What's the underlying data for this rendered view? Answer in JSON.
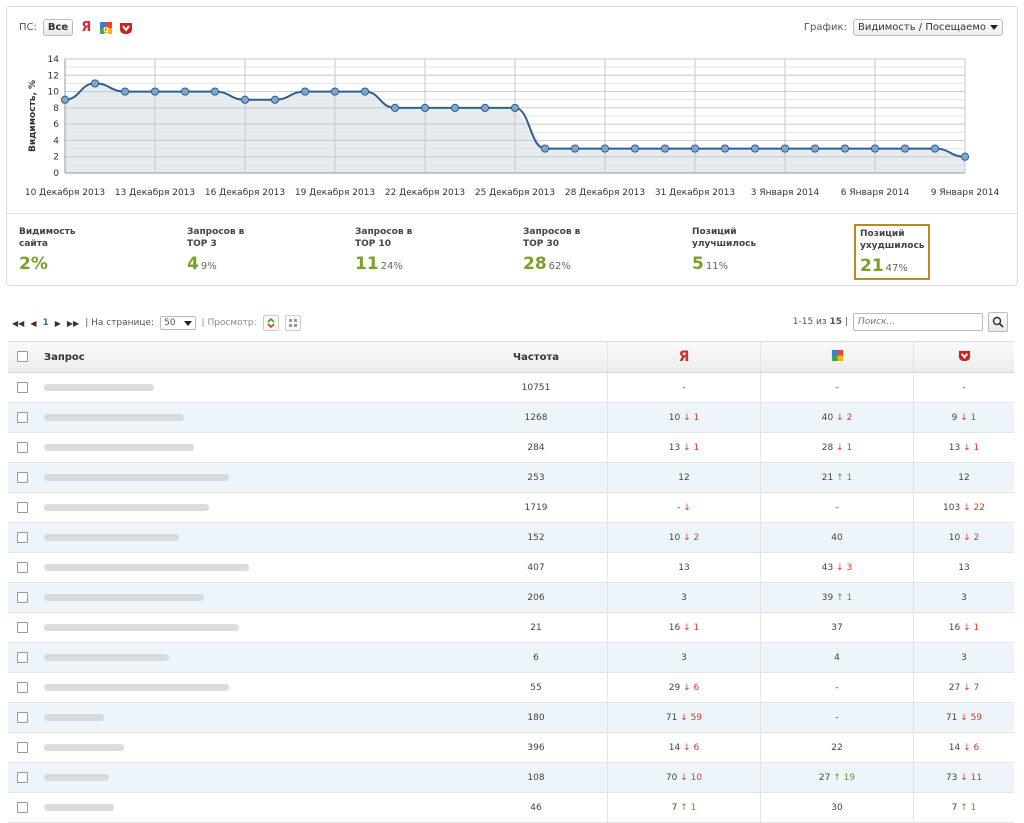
{
  "ps_filter": {
    "label": "ПС:",
    "all": "Все"
  },
  "graph_selector": {
    "label": "График:",
    "value": "Видимость / Посещаемо"
  },
  "chart_data": {
    "type": "area",
    "ylabel": "Видимость, %",
    "ylim": [
      0,
      14
    ],
    "yticks": [
      0,
      2,
      4,
      6,
      8,
      10,
      12,
      14
    ],
    "xtick_labels": [
      "10 Декабря 2013",
      "13 Декабря 2013",
      "16 Декабря 2013",
      "19 Декабря 2013",
      "22 Декабря 2013",
      "25 Декабря 2013",
      "28 Декабря 2013",
      "31 Декабря 2013",
      "3 Января 2014",
      "6 Января 2014",
      "9 Января 2014"
    ],
    "values": [
      9,
      11,
      10,
      10,
      10,
      10,
      9,
      9,
      10,
      10,
      10,
      8,
      8,
      8,
      8,
      8,
      3,
      3,
      3,
      3,
      3,
      3,
      3,
      3,
      3,
      3,
      3,
      3,
      3,
      3,
      2
    ],
    "grid": true,
    "line_color": "#2f5f8f",
    "fill_color": "#e6ebf0"
  },
  "metrics": [
    {
      "title": "Видимость\nсайта",
      "value": "2%",
      "pct": ""
    },
    {
      "title": "Запросов в\nТОР 3",
      "value": "4",
      "pct": "9%"
    },
    {
      "title": "Запросов в\nТОР 10",
      "value": "11",
      "pct": "24%"
    },
    {
      "title": "Запросов в\nТОР 30",
      "value": "28",
      "pct": "62%"
    },
    {
      "title": "Позиций\nулучшилось",
      "value": "5",
      "pct": "11%"
    },
    {
      "title": "Позиций\nухудшилось",
      "value": "21",
      "pct": "47%"
    }
  ],
  "toolbar": {
    "first": "◀◀",
    "prev": "◀",
    "page": "1",
    "next": "▶",
    "last": "▶▶",
    "per_page_label": "| На странице:",
    "per_page": "50",
    "view_label": "| Просмотр:",
    "range_prefix": "1-15 из",
    "total": "15",
    "range_suffix": "|",
    "search_placeholder": "Поиск..."
  },
  "table": {
    "headers": {
      "query": "Запрос",
      "freq": "Частота",
      "yandex": "Я"
    },
    "rows": [
      {
        "w": 110,
        "freq": "10751",
        "y": "-",
        "yd": "",
        "yc": "",
        "g": "-",
        "gd": "",
        "gc": "",
        "m": "-",
        "md": "",
        "mc": ""
      },
      {
        "w": 140,
        "freq": "1268",
        "y": "10",
        "yd": "↓ 1",
        "yc": "down",
        "g": "40",
        "gd": "↓ 2",
        "gc": "down",
        "m": "9",
        "md": "↓ 1",
        "mc": "down"
      },
      {
        "w": 150,
        "freq": "284",
        "y": "13",
        "yd": "↓ 1",
        "yc": "down",
        "g": "28",
        "gd": "↓ 1",
        "gc": "down",
        "m": "13",
        "md": "↓ 1",
        "mc": "down"
      },
      {
        "w": 185,
        "freq": "253",
        "y": "12",
        "yd": "",
        "yc": "",
        "g": "21",
        "gd": "↑ 1",
        "gc": "up",
        "m": "12",
        "md": "",
        "mc": ""
      },
      {
        "w": 165,
        "freq": "1719",
        "y": "-",
        "yd": "↓",
        "yc": "down",
        "g": "-",
        "gd": "",
        "gc": "",
        "m": "103",
        "md": "↓ 22",
        "mc": "down"
      },
      {
        "w": 135,
        "freq": "152",
        "y": "10",
        "yd": "↓ 2",
        "yc": "down",
        "g": "40",
        "gd": "",
        "gc": "",
        "m": "10",
        "md": "↓ 2",
        "mc": "down"
      },
      {
        "w": 205,
        "freq": "407",
        "y": "13",
        "yd": "",
        "yc": "",
        "g": "43",
        "gd": "↓ 3",
        "gc": "down",
        "m": "13",
        "md": "",
        "mc": ""
      },
      {
        "w": 160,
        "freq": "206",
        "y": "3",
        "yd": "",
        "yc": "",
        "g": "39",
        "gd": "↑ 1",
        "gc": "up",
        "m": "3",
        "md": "",
        "mc": ""
      },
      {
        "w": 195,
        "freq": "21",
        "y": "16",
        "yd": "↓ 1",
        "yc": "down",
        "g": "37",
        "gd": "",
        "gc": "",
        "m": "16",
        "md": "↓ 1",
        "mc": "down"
      },
      {
        "w": 125,
        "freq": "6",
        "y": "3",
        "yd": "",
        "yc": "",
        "g": "4",
        "gd": "",
        "gc": "",
        "m": "3",
        "md": "",
        "mc": ""
      },
      {
        "w": 185,
        "freq": "55",
        "y": "29",
        "yd": "↓ 6",
        "yc": "down",
        "g": "-",
        "gd": "",
        "gc": "",
        "m": "27",
        "md": "↓ 7",
        "mc": "down"
      },
      {
        "w": 60,
        "freq": "180",
        "y": "71",
        "yd": "↓ 59",
        "yc": "down",
        "g": "-",
        "gd": "",
        "gc": "",
        "m": "71",
        "md": "↓ 59",
        "mc": "down"
      },
      {
        "w": 80,
        "freq": "396",
        "y": "14",
        "yd": "↓ 6",
        "yc": "down",
        "g": "22",
        "gd": "",
        "gc": "",
        "m": "14",
        "md": "↓ 6",
        "mc": "down"
      },
      {
        "w": 65,
        "freq": "108",
        "y": "70",
        "yd": "↓ 10",
        "yc": "down",
        "g": "27",
        "gd": "↑ 19",
        "gc": "up",
        "m": "73",
        "md": "↓ 11",
        "mc": "down"
      },
      {
        "w": 70,
        "freq": "46",
        "y": "7",
        "yd": "↑ 1",
        "yc": "up",
        "g": "30",
        "gd": "",
        "gc": "",
        "m": "7",
        "md": "↑ 1",
        "mc": "up"
      }
    ]
  }
}
